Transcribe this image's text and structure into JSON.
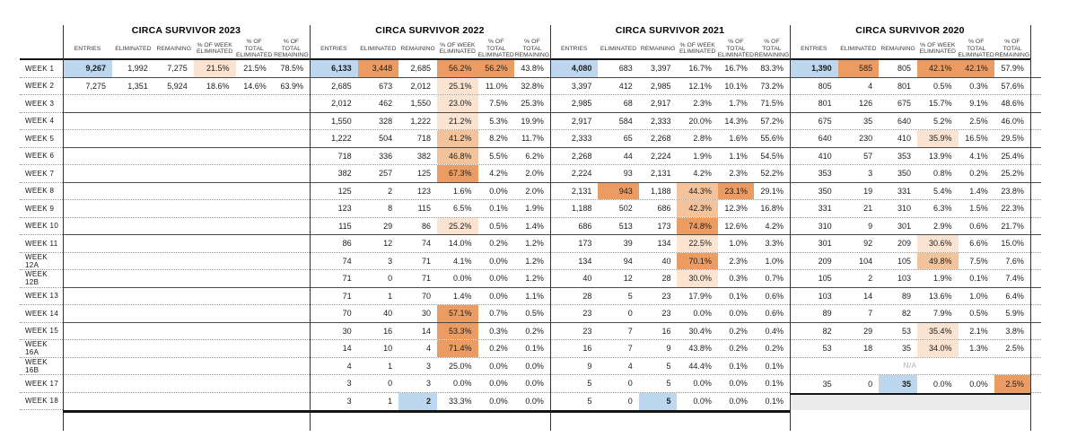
{
  "chart_data": {
    "type": "table",
    "na_label": "N/A",
    "colors": {
      "highlight_blue": "#BDD7EE",
      "orange_light": "#FAE3D0",
      "orange_mid": "#F3C49C",
      "orange_dark": "#EB9C62",
      "grey_unused_row": "#EBEBEB"
    },
    "columns": [
      "ENTRIES",
      "ELIMINATED",
      "REMAINING",
      "% OF WEEK ELIMINATED",
      "% OF TOTAL ELIMINATED",
      "% OF TOTAL REMAINING"
    ],
    "week_labels": [
      "WEEK 1",
      "WEEK 2",
      "WEEK 3",
      "WEEK 4",
      "WEEK 5",
      "WEEK 6",
      "WEEK 7",
      "WEEK 8",
      "WEEK 9",
      "WEEK 10",
      "WEEK 11",
      "WEEK 12A",
      "WEEK 12B",
      "WEEK 13",
      "WEEK 14",
      "WEEK 15",
      "WEEK 16A",
      "WEEK 16B",
      "WEEK 17",
      "WEEK 18"
    ],
    "sections": [
      {
        "title": "CIRCA SURVIVOR 2023",
        "rows": [
          {
            "c": [
              "9,267",
              "1,992",
              "7,275",
              "21.5%",
              "21.5%",
              "78.5%"
            ],
            "h": {
              "0": "blue",
              "3": "light"
            }
          },
          {
            "c": [
              "7,275",
              "1,351",
              "5,924",
              "18.6%",
              "14.6%",
              "63.9%"
            ]
          },
          {
            "c": [
              "",
              "",
              "",
              "",
              "",
              ""
            ]
          },
          {
            "c": [
              "",
              "",
              "",
              "",
              "",
              ""
            ]
          },
          {
            "c": [
              "",
              "",
              "",
              "",
              "",
              ""
            ]
          },
          {
            "c": [
              "",
              "",
              "",
              "",
              "",
              ""
            ]
          },
          {
            "c": [
              "",
              "",
              "",
              "",
              "",
              ""
            ]
          },
          {
            "c": [
              "",
              "",
              "",
              "",
              "",
              ""
            ]
          },
          {
            "c": [
              "",
              "",
              "",
              "",
              "",
              ""
            ]
          },
          {
            "c": [
              "",
              "",
              "",
              "",
              "",
              ""
            ]
          },
          {
            "c": [
              "",
              "",
              "",
              "",
              "",
              ""
            ]
          },
          {
            "c": [
              "",
              "",
              "",
              "",
              "",
              ""
            ]
          },
          {
            "c": [
              "",
              "",
              "",
              "",
              "",
              ""
            ]
          },
          {
            "c": [
              "",
              "",
              "",
              "",
              "",
              ""
            ]
          },
          {
            "c": [
              "",
              "",
              "",
              "",
              "",
              ""
            ]
          },
          {
            "c": [
              "",
              "",
              "",
              "",
              "",
              ""
            ]
          },
          {
            "c": [
              "",
              "",
              "",
              "",
              "",
              ""
            ]
          },
          {
            "c": [
              "",
              "",
              "",
              "",
              "",
              ""
            ]
          },
          {
            "c": [
              "",
              "",
              "",
              "",
              "",
              ""
            ]
          },
          {
            "c": [
              "",
              "",
              "",
              "",
              "",
              ""
            ]
          }
        ]
      },
      {
        "title": "CIRCA SURVIVOR 2022",
        "rows": [
          {
            "c": [
              "6,133",
              "3,448",
              "2,685",
              "56.2%",
              "56.2%",
              "43.8%"
            ],
            "h": {
              "0": "blue",
              "1": "dark",
              "3": "dark",
              "4": "dark"
            }
          },
          {
            "c": [
              "2,685",
              "673",
              "2,012",
              "25.1%",
              "11.0%",
              "32.8%"
            ],
            "h": {
              "3": "light"
            }
          },
          {
            "c": [
              "2,012",
              "462",
              "1,550",
              "23.0%",
              "7.5%",
              "25.3%"
            ],
            "h": {
              "3": "light"
            }
          },
          {
            "c": [
              "1,550",
              "328",
              "1,222",
              "21.2%",
              "5.3%",
              "19.9%"
            ],
            "h": {
              "3": "light"
            }
          },
          {
            "c": [
              "1,222",
              "504",
              "718",
              "41.2%",
              "8.2%",
              "11.7%"
            ],
            "h": {
              "3": "mid"
            }
          },
          {
            "c": [
              "718",
              "336",
              "382",
              "46.8%",
              "5.5%",
              "6.2%"
            ],
            "h": {
              "3": "mid"
            }
          },
          {
            "c": [
              "382",
              "257",
              "125",
              "67.3%",
              "4.2%",
              "2.0%"
            ],
            "h": {
              "3": "dark"
            }
          },
          {
            "c": [
              "125",
              "2",
              "123",
              "1.6%",
              "0.0%",
              "2.0%"
            ]
          },
          {
            "c": [
              "123",
              "8",
              "115",
              "6.5%",
              "0.1%",
              "1.9%"
            ]
          },
          {
            "c": [
              "115",
              "29",
              "86",
              "25.2%",
              "0.5%",
              "1.4%"
            ],
            "h": {
              "3": "light"
            }
          },
          {
            "c": [
              "86",
              "12",
              "74",
              "14.0%",
              "0.2%",
              "1.2%"
            ]
          },
          {
            "c": [
              "74",
              "3",
              "71",
              "4.1%",
              "0.0%",
              "1.2%"
            ]
          },
          {
            "c": [
              "71",
              "0",
              "71",
              "0.0%",
              "0.0%",
              "1.2%"
            ]
          },
          {
            "c": [
              "71",
              "1",
              "70",
              "1.4%",
              "0.0%",
              "1.1%"
            ]
          },
          {
            "c": [
              "70",
              "40",
              "30",
              "57.1%",
              "0.7%",
              "0.5%"
            ],
            "h": {
              "3": "dark"
            }
          },
          {
            "c": [
              "30",
              "16",
              "14",
              "53.3%",
              "0.3%",
              "0.2%"
            ],
            "h": {
              "3": "dark"
            }
          },
          {
            "c": [
              "14",
              "10",
              "4",
              "71.4%",
              "0.2%",
              "0.1%"
            ],
            "h": {
              "3": "dark"
            }
          },
          {
            "c": [
              "4",
              "1",
              "3",
              "25.0%",
              "0.0%",
              "0.0%"
            ]
          },
          {
            "c": [
              "3",
              "0",
              "3",
              "0.0%",
              "0.0%",
              "0.0%"
            ]
          },
          {
            "c": [
              "3",
              "1",
              "2",
              "33.3%",
              "0.0%",
              "0.0%"
            ],
            "h": {
              "2": "blue"
            }
          }
        ]
      },
      {
        "title": "CIRCA SURVIVOR 2021",
        "rows": [
          {
            "c": [
              "4,080",
              "683",
              "3,397",
              "16.7%",
              "16.7%",
              "83.3%"
            ],
            "h": {
              "0": "blue"
            }
          },
          {
            "c": [
              "3,397",
              "412",
              "2,985",
              "12.1%",
              "10.1%",
              "73.2%"
            ]
          },
          {
            "c": [
              "2,985",
              "68",
              "2,917",
              "2.3%",
              "1.7%",
              "71.5%"
            ]
          },
          {
            "c": [
              "2,917",
              "584",
              "2,333",
              "20.0%",
              "14.3%",
              "57.2%"
            ]
          },
          {
            "c": [
              "2,333",
              "65",
              "2,268",
              "2.8%",
              "1.6%",
              "55.6%"
            ]
          },
          {
            "c": [
              "2,268",
              "44",
              "2,224",
              "1.9%",
              "1.1%",
              "54.5%"
            ]
          },
          {
            "c": [
              "2,224",
              "93",
              "2,131",
              "4.2%",
              "2.3%",
              "52.2%"
            ]
          },
          {
            "c": [
              "2,131",
              "943",
              "1,188",
              "44.3%",
              "23.1%",
              "29.1%"
            ],
            "h": {
              "1": "dark",
              "3": "mid",
              "4": "dark"
            }
          },
          {
            "c": [
              "1,188",
              "502",
              "686",
              "42.3%",
              "12.3%",
              "16.8%"
            ],
            "h": {
              "3": "mid"
            }
          },
          {
            "c": [
              "686",
              "513",
              "173",
              "74.8%",
              "12.6%",
              "4.2%"
            ],
            "h": {
              "3": "dark"
            }
          },
          {
            "c": [
              "173",
              "39",
              "134",
              "22.5%",
              "1.0%",
              "3.3%"
            ],
            "h": {
              "3": "light"
            }
          },
          {
            "c": [
              "134",
              "94",
              "40",
              "70.1%",
              "2.3%",
              "1.0%"
            ],
            "h": {
              "3": "dark"
            }
          },
          {
            "c": [
              "40",
              "12",
              "28",
              "30.0%",
              "0.3%",
              "0.7%"
            ],
            "h": {
              "3": "light"
            }
          },
          {
            "c": [
              "28",
              "5",
              "23",
              "17.9%",
              "0.1%",
              "0.6%"
            ]
          },
          {
            "c": [
              "23",
              "0",
              "23",
              "0.0%",
              "0.0%",
              "0.6%"
            ]
          },
          {
            "c": [
              "23",
              "7",
              "16",
              "30.4%",
              "0.2%",
              "0.4%"
            ]
          },
          {
            "c": [
              "16",
              "7",
              "9",
              "43.8%",
              "0.2%",
              "0.2%"
            ]
          },
          {
            "c": [
              "9",
              "4",
              "5",
              "44.4%",
              "0.1%",
              "0.1%"
            ]
          },
          {
            "c": [
              "5",
              "0",
              "5",
              "0.0%",
              "0.0%",
              "0.1%"
            ]
          },
          {
            "c": [
              "5",
              "0",
              "5",
              "0.0%",
              "0.0%",
              "0.1%"
            ],
            "h": {
              "2": "blue"
            }
          }
        ]
      },
      {
        "title": "CIRCA SURVIVOR 2020",
        "rows": [
          {
            "c": [
              "1,390",
              "585",
              "805",
              "42.1%",
              "42.1%",
              "57.9%"
            ],
            "h": {
              "0": "blue",
              "1": "dark",
              "3": "dark",
              "4": "dark"
            }
          },
          {
            "c": [
              "805",
              "4",
              "801",
              "0.5%",
              "0.3%",
              "57.6%"
            ]
          },
          {
            "c": [
              "801",
              "126",
              "675",
              "15.7%",
              "9.1%",
              "48.6%"
            ]
          },
          {
            "c": [
              "675",
              "35",
              "640",
              "5.2%",
              "2.5%",
              "46.0%"
            ]
          },
          {
            "c": [
              "640",
              "230",
              "410",
              "35.9%",
              "16.5%",
              "29.5%"
            ],
            "h": {
              "3": "light"
            }
          },
          {
            "c": [
              "410",
              "57",
              "353",
              "13.9%",
              "4.1%",
              "25.4%"
            ]
          },
          {
            "c": [
              "353",
              "3",
              "350",
              "0.8%",
              "0.2%",
              "25.2%"
            ]
          },
          {
            "c": [
              "350",
              "19",
              "331",
              "5.4%",
              "1.4%",
              "23.8%"
            ]
          },
          {
            "c": [
              "331",
              "21",
              "310",
              "6.3%",
              "1.5%",
              "22.3%"
            ]
          },
          {
            "c": [
              "310",
              "9",
              "301",
              "2.9%",
              "0.6%",
              "21.7%"
            ]
          },
          {
            "c": [
              "301",
              "92",
              "209",
              "30.6%",
              "6.6%",
              "15.0%"
            ],
            "h": {
              "3": "light"
            }
          },
          {
            "c": [
              "209",
              "104",
              "105",
              "49.8%",
              "7.5%",
              "7.6%"
            ],
            "h": {
              "3": "mid"
            }
          },
          {
            "c": [
              "105",
              "2",
              "103",
              "1.9%",
              "0.1%",
              "7.4%"
            ]
          },
          {
            "c": [
              "103",
              "14",
              "89",
              "13.6%",
              "1.0%",
              "6.4%"
            ]
          },
          {
            "c": [
              "89",
              "7",
              "82",
              "7.9%",
              "0.5%",
              "5.9%"
            ]
          },
          {
            "c": [
              "82",
              "29",
              "53",
              "35.4%",
              "2.1%",
              "3.8%"
            ],
            "h": {
              "3": "light"
            }
          },
          {
            "c": [
              "53",
              "18",
              "35",
              "34.0%",
              "1.3%",
              "2.5%"
            ],
            "h": {
              "3": "light"
            }
          },
          {
            "na": true
          },
          {
            "c": [
              "35",
              "0",
              "35",
              "0.0%",
              "0.0%",
              "2.5%"
            ],
            "h": {
              "2": "blue",
              "5": "dark"
            }
          },
          {
            "grey": true
          }
        ]
      }
    ]
  }
}
